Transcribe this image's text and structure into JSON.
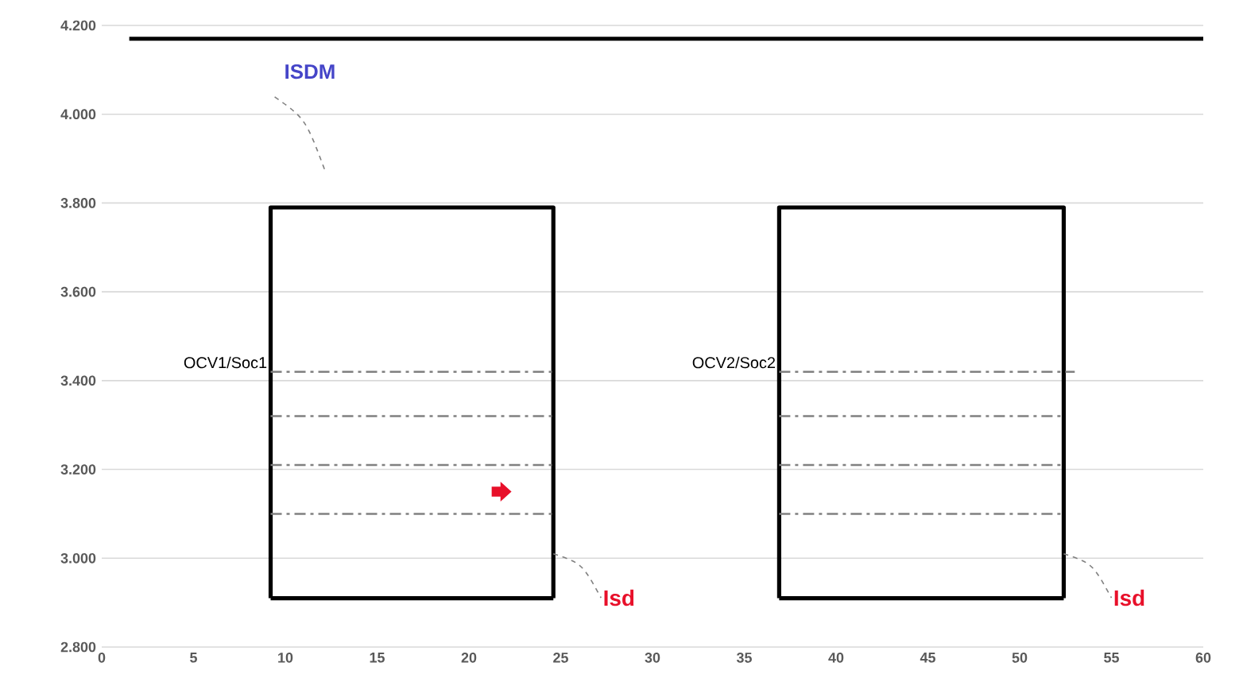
{
  "chart_data": {
    "type": "line",
    "series": [
      {
        "color": "#000000",
        "line_style": "solid",
        "x": [
          1.5,
          60
        ],
        "values": [
          4170,
          4170
        ]
      },
      {
        "color": "#000000",
        "line_style": "solid",
        "x": [
          9.2,
          9.2,
          24.6,
          24.6
        ],
        "values": [
          2910,
          3790,
          3790,
          2910
        ]
      },
      {
        "color": "#000000",
        "line_style": "solid",
        "x": [
          9.2,
          24.6
        ],
        "values": [
          2910,
          2910
        ]
      },
      {
        "color": "#000000",
        "line_style": "solid",
        "x": [
          36.9,
          36.9,
          52.4,
          52.4
        ],
        "values": [
          2910,
          3790,
          3790,
          2910
        ]
      },
      {
        "color": "#000000",
        "line_style": "solid",
        "x": [
          36.9,
          52.4
        ],
        "values": [
          2910,
          2910
        ]
      },
      {
        "color": "#808080",
        "line_style": "dashed",
        "x": [
          9.2,
          24.6
        ],
        "values": [
          3420,
          3420
        ]
      },
      {
        "color": "#808080",
        "line_style": "dashed",
        "x": [
          9.2,
          24.6
        ],
        "values": [
          3320,
          3320
        ]
      },
      {
        "color": "#808080",
        "line_style": "dashed",
        "x": [
          9.2,
          24.6
        ],
        "values": [
          3210,
          3210
        ]
      },
      {
        "color": "#808080",
        "line_style": "dashed",
        "x": [
          9.2,
          24.6
        ],
        "values": [
          3100,
          3100
        ]
      },
      {
        "color": "#808080",
        "line_style": "dashed",
        "x": [
          36.9,
          53.0
        ],
        "values": [
          3420,
          3420
        ]
      },
      {
        "color": "#808080",
        "line_style": "dashed",
        "x": [
          36.9,
          52.4
        ],
        "values": [
          3320,
          3320
        ]
      },
      {
        "color": "#808080",
        "line_style": "dashed",
        "x": [
          36.9,
          52.4
        ],
        "values": [
          3210,
          3210
        ]
      },
      {
        "color": "#808080",
        "line_style": "dashed",
        "x": [
          36.9,
          52.4
        ],
        "values": [
          3100,
          3100
        ]
      }
    ],
    "annotations": [
      "ISDM",
      {
        "text": "OCV1/Soc1",
        "x": 9.2,
        "y": 3420
      },
      {
        "text": "OCV2/Soc2",
        "x": 36.9,
        "y": 3420
      },
      {
        "text": "Isd",
        "x": 24.6,
        "y": 3010
      },
      {
        "text": "Isd",
        "x": 52.4,
        "y": 3010
      }
    ],
    "xlim": [
      0,
      60
    ],
    "xticks": [
      0,
      5,
      10,
      15,
      20,
      25,
      30,
      35,
      40,
      45,
      50,
      55,
      60
    ],
    "ylim": [
      2800,
      4200
    ],
    "yticks": [
      {
        "value": 2800,
        "label": "2.800"
      },
      {
        "value": 3000,
        "label": "3.000"
      },
      {
        "value": 3200,
        "label": "3.200"
      },
      {
        "value": 3400,
        "label": "3.400"
      },
      {
        "value": 3600,
        "label": "3.600"
      },
      {
        "value": 3800,
        "label": "3.800"
      },
      {
        "value": 4000,
        "label": "4.000"
      },
      {
        "value": 4200,
        "label": "4.200"
      }
    ],
    "grid": "y"
  }
}
